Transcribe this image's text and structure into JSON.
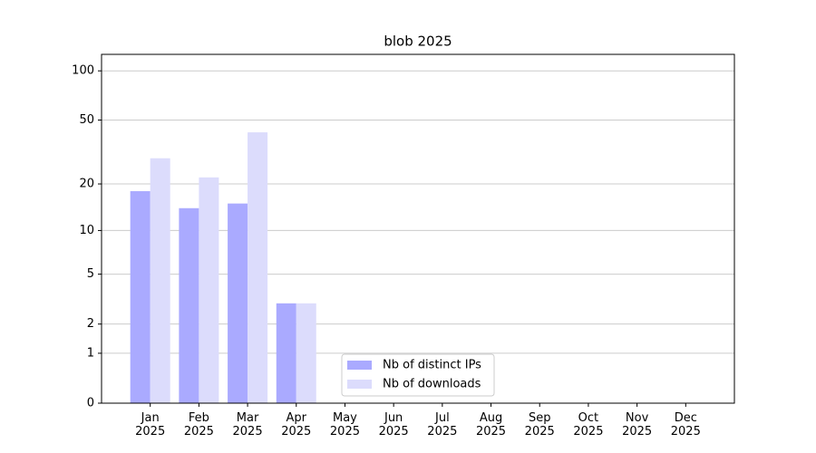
{
  "chart_data": {
    "type": "bar",
    "title": "blob 2025",
    "scale": "log1p",
    "categories": [
      "Jan\n2025",
      "Feb\n2025",
      "Mar\n2025",
      "Apr\n2025",
      "May\n2025",
      "Jun\n2025",
      "Jul\n2025",
      "Aug\n2025",
      "Sep\n2025",
      "Oct\n2025",
      "Nov\n2025",
      "Dec\n2025"
    ],
    "series": [
      {
        "name": "Nb of distinct IPs",
        "color": "#aaaaff",
        "values": [
          18,
          14,
          15,
          3,
          0,
          0,
          0,
          0,
          0,
          0,
          0,
          0
        ]
      },
      {
        "name": "Nb of downloads",
        "color": "#dcdcfc",
        "values": [
          29,
          22,
          42,
          3,
          0,
          0,
          0,
          0,
          0,
          0,
          0,
          0
        ]
      }
    ],
    "ylim": [
      0,
      126
    ],
    "yticks": [
      0,
      1,
      2,
      5,
      10,
      20,
      50,
      100
    ],
    "grid": true,
    "legend": "lower center"
  }
}
